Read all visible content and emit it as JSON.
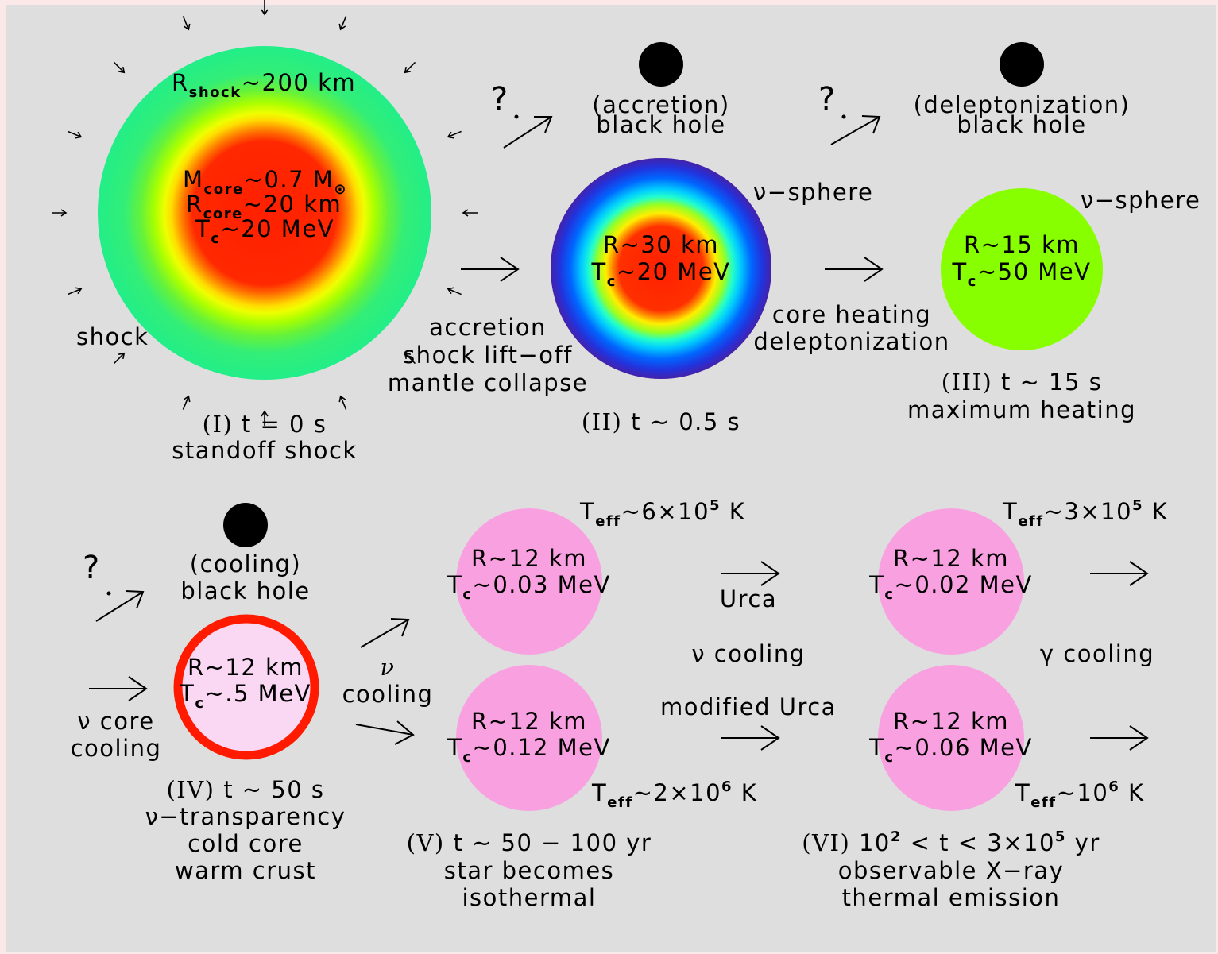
{
  "stages": {
    "I": {
      "r_shock": {
        "R": "R",
        "sub": "shock",
        "rest": "~200 km"
      },
      "m_core": {
        "M": "M",
        "sub": "core",
        "rest": "~0.7 M",
        "sun": "⊙"
      },
      "r_core": {
        "R": "R",
        "sub": "core",
        "rest": "~20 km"
      },
      "tc": {
        "T": "T",
        "sub": "c",
        "rest": "~20 MeV"
      },
      "shock_label": "shock",
      "numeral": "(I)",
      "time": "t = 0 s",
      "desc": "standoff shock"
    },
    "transition_I_II": [
      "accretion",
      "shock lift−off",
      "mantle collapse"
    ],
    "II": {
      "bh": [
        "(accretion)",
        "black hole"
      ],
      "nusphere": "ν−sphere",
      "r": "R~30 km",
      "tc": {
        "T": "T",
        "sub": "c",
        "rest": "~20 MeV"
      },
      "numeral": "(II)",
      "time": "t ~ 0.5 s"
    },
    "transition_II_III": [
      "core heating",
      "deleptonization"
    ],
    "III": {
      "bh": [
        "(deleptonization)",
        "black hole"
      ],
      "nusphere": "ν−sphere",
      "r": "R~15 km",
      "tc": {
        "T": "T",
        "sub": "c",
        "rest": "~50 MeV"
      },
      "numeral": "(III)",
      "time": "t ~ 15 s",
      "desc": "maximum heating"
    },
    "IV": {
      "bh": [
        "(cooling)",
        "black hole"
      ],
      "in_label": [
        "ν core",
        "cooling"
      ],
      "r": "R~12 km",
      "tc": {
        "T": "T",
        "sub": "c",
        "rest": "~.5 MeV"
      },
      "numeral": "(IV)",
      "time": "t ~ 50 s",
      "desc": [
        "ν−transparency",
        "cold core",
        "warm crust"
      ]
    },
    "branch_label": [
      "ν",
      "cooling"
    ],
    "V": {
      "top": {
        "r": "R~12 km",
        "tc": {
          "T": "T",
          "sub": "c",
          "rest": "~0.03 MeV"
        },
        "teff": {
          "T": "T",
          "sub": "eff",
          "rest": "~6×10",
          "exp": "5",
          "unit": " K"
        }
      },
      "bottom": {
        "r": "R~12 km",
        "tc": {
          "T": "T",
          "sub": "c",
          "rest": "~0.12 MeV"
        },
        "teff": {
          "T": "T",
          "sub": "eff",
          "rest": "~2×10",
          "exp": "6",
          "unit": " K"
        }
      },
      "numeral": "(V)",
      "time": "t ~ 50 − 100 yr",
      "desc": [
        "star becomes",
        "isothermal"
      ]
    },
    "transition_V_VI": {
      "top": "Urca",
      "middle": "ν cooling",
      "bottom": "modified Urca"
    },
    "VI": {
      "top": {
        "r": "R~12 km",
        "tc": {
          "T": "T",
          "sub": "c",
          "rest": "~0.02 MeV"
        },
        "teff": {
          "T": "T",
          "sub": "eff",
          "rest": "~3×10",
          "exp": "5",
          "unit": " K"
        }
      },
      "bottom": {
        "r": "R~12 km",
        "tc": {
          "T": "T",
          "sub": "c",
          "rest": "~0.06 MeV"
        },
        "teff": {
          "T": "T",
          "sub": "eff",
          "rest": "~10",
          "exp": "6",
          "unit": " K"
        }
      },
      "numeral": "(VI)",
      "time_a": "10",
      "time_exp": "2",
      "time_b": " < t < 3×10",
      "time_exp2": "5",
      "time_c": " yr",
      "desc": [
        "observable X−ray",
        "thermal emission"
      ]
    },
    "final_label": "γ cooling",
    "question": "?"
  },
  "colors": {
    "background": "#dedede",
    "pink_star": "#f9a0e0",
    "cool_star_fill": "#fad7f2",
    "cool_star_ring": "#ff1a00",
    "hot_green": "#88ff00",
    "core_red": "#ff2000"
  }
}
